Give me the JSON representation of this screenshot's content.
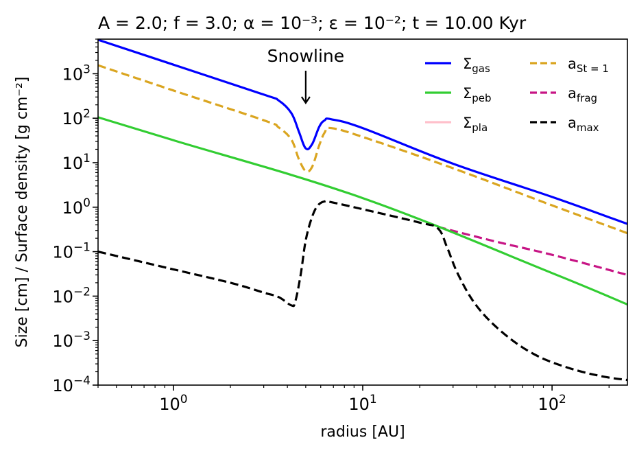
{
  "chart_data": {
    "type": "line",
    "title": "A = 2.0; f = 3.0; α = 10⁻³; ε = 10⁻²; t = 10.00 Kyr",
    "xlabel": "radius [AU]",
    "ylabel": "Size [cm] / Surface density [g cm⁻²]",
    "xscale": "log",
    "yscale": "log",
    "xlim": [
      0.4,
      250
    ],
    "ylim": [
      0.0001,
      6000
    ],
    "xticks": [
      {
        "value": 1,
        "base": "10",
        "exp": "0"
      },
      {
        "value": 10,
        "base": "10",
        "exp": "1"
      },
      {
        "value": 100,
        "base": "10",
        "exp": "2"
      }
    ],
    "yticks": [
      {
        "value": 0.0001,
        "base": "10",
        "exp": "−4"
      },
      {
        "value": 0.001,
        "base": "10",
        "exp": "−3"
      },
      {
        "value": 0.01,
        "base": "10",
        "exp": "−2"
      },
      {
        "value": 0.1,
        "base": "10",
        "exp": "−1"
      },
      {
        "value": 1,
        "base": "10",
        "exp": "0"
      },
      {
        "value": 10,
        "base": "10",
        "exp": "1"
      },
      {
        "value": 100,
        "base": "10",
        "exp": "2"
      },
      {
        "value": 1000,
        "base": "10",
        "exp": "3"
      }
    ],
    "annotation": {
      "text": "Snowline",
      "x": 5.0,
      "y_arrow_tip": 220
    },
    "legend_position": "top-right",
    "series": [
      {
        "name": "Σgas",
        "label_main": "Σ",
        "label_sub": "gas",
        "color": "#0000ff",
        "dash": "solid",
        "x": [
          0.4,
          1.0,
          3.0,
          3.6,
          4.2,
          4.6,
          5.0,
          5.4,
          5.9,
          6.3,
          6.8,
          10,
          30,
          100,
          250
        ],
        "y": [
          5800,
          1600,
          340,
          250,
          130,
          50,
          21,
          26,
          65,
          90,
          95,
          60,
          9.5,
          1.7,
          0.42
        ]
      },
      {
        "name": "Σpeb",
        "label_main": "Σ",
        "label_sub": "peb",
        "color": "#32cd32",
        "dash": "solid",
        "x": [
          0.4,
          1.0,
          10,
          100,
          250
        ],
        "y": [
          105,
          32,
          1.6,
          0.033,
          0.0065
        ]
      },
      {
        "name": "Σpla",
        "label_main": "Σ",
        "label_sub": "pla",
        "color": "#ffc0cb",
        "dash": "solid",
        "x": [],
        "y": []
      },
      {
        "name": "aSt=1",
        "label_main": "a",
        "label_sub": "St = 1",
        "color": "#daa520",
        "dash": "dashed",
        "x": [
          0.4,
          1.0,
          3.0,
          3.6,
          4.2,
          4.6,
          5.0,
          5.4,
          5.9,
          6.3,
          6.8,
          10,
          30,
          100,
          250
        ],
        "y": [
          1550,
          420,
          90,
          62,
          33,
          12,
          6.5,
          8,
          25,
          48,
          60,
          38,
          7.5,
          1.1,
          0.26
        ]
      },
      {
        "name": "afrag",
        "label_main": "a",
        "label_sub": "frag",
        "color": "#c71585",
        "dash": "dashed",
        "x": [
          25,
          50,
          100,
          250
        ],
        "y": [
          0.36,
          0.17,
          0.085,
          0.03
        ]
      },
      {
        "name": "amax",
        "label_main": "a",
        "label_sub": "max",
        "color": "#000000",
        "dash": "dashed",
        "x": [
          0.4,
          1.0,
          2.0,
          3.0,
          3.6,
          4.2,
          4.4,
          4.7,
          5.0,
          5.4,
          5.8,
          6.3,
          6.8,
          10,
          20,
          25,
          28,
          32,
          40,
          55,
          80,
          120,
          180,
          250
        ],
        "y": [
          0.1,
          0.04,
          0.02,
          0.012,
          0.0095,
          0.0062,
          0.0075,
          0.03,
          0.18,
          0.6,
          1.1,
          1.35,
          1.3,
          0.9,
          0.45,
          0.33,
          0.12,
          0.03,
          0.006,
          0.0015,
          0.0005,
          0.00025,
          0.00016,
          0.00013
        ]
      }
    ]
  }
}
